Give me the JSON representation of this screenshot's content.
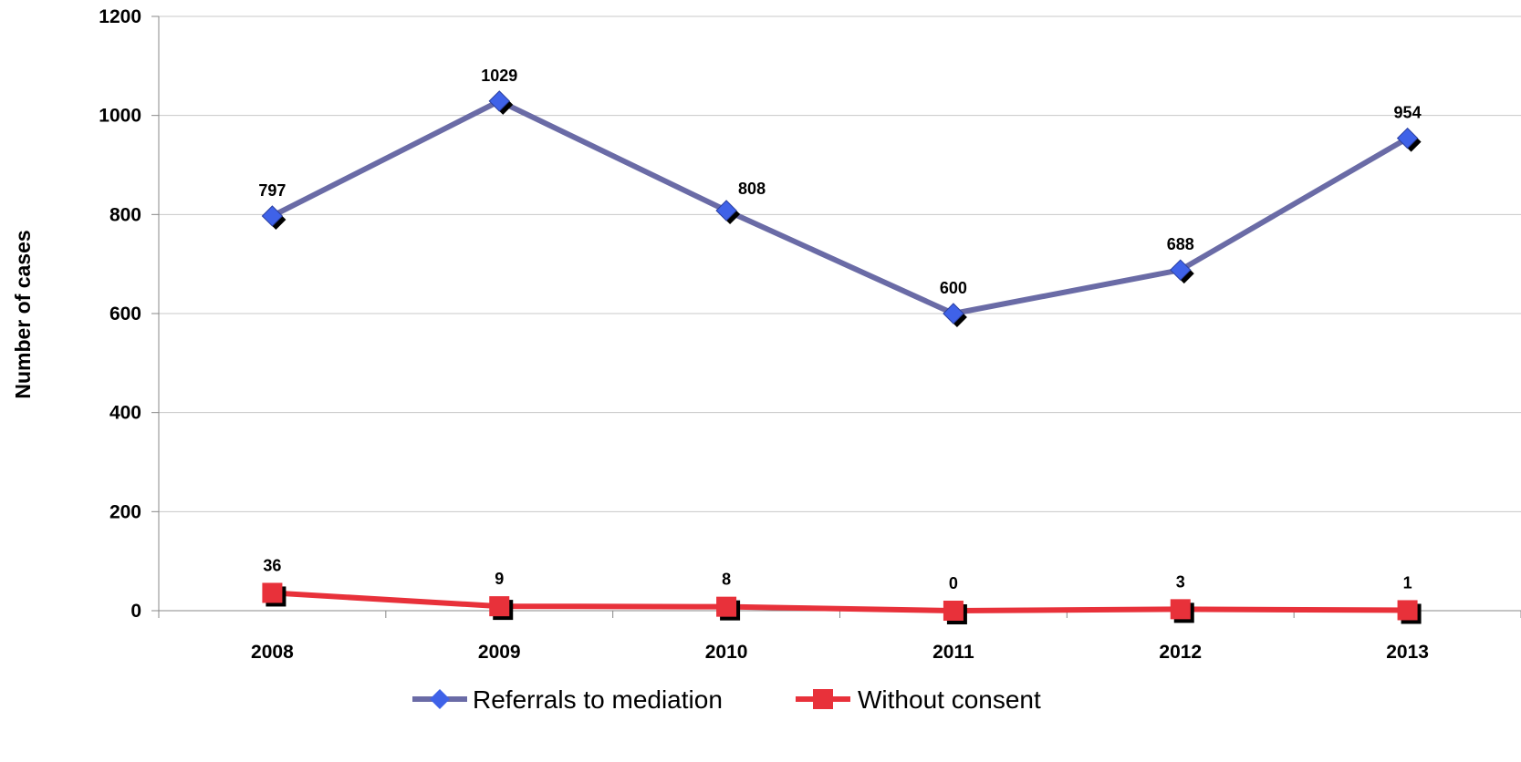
{
  "chart_data": {
    "type": "line",
    "ylabel": "Number of cases",
    "categories": [
      "2008",
      "2009",
      "2010",
      "2011",
      "2012",
      "2013"
    ],
    "ylim": [
      0,
      1200
    ],
    "yticks": [
      "0",
      "200",
      "400",
      "600",
      "800",
      "1000",
      "1200"
    ],
    "grid": true,
    "legend_position": "bottom",
    "series": [
      {
        "name": "Referrals to mediation",
        "values": [
          797,
          1029,
          808,
          600,
          688,
          954
        ],
        "labels": [
          "797",
          "1029",
          "808",
          "600",
          "688",
          "954"
        ],
        "color": "#6A6BA6",
        "marker_color": "#3F62E8",
        "marker": "diamond"
      },
      {
        "name": "Without consent",
        "values": [
          36,
          9,
          8,
          0,
          3,
          1
        ],
        "labels": [
          "36",
          "9",
          "8",
          "0",
          "3",
          "1"
        ],
        "color": "#E8313A",
        "marker_color": "#E8313A",
        "marker": "square"
      }
    ]
  }
}
